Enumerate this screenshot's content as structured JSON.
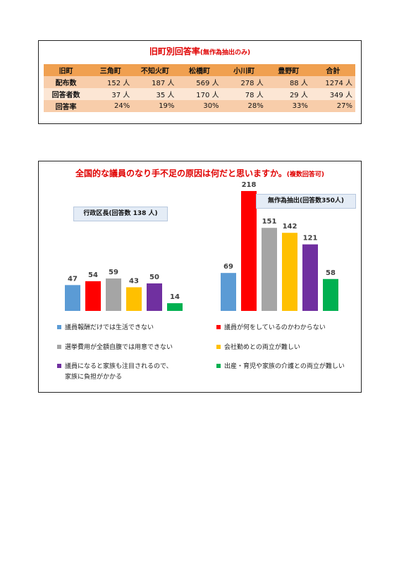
{
  "response_table": {
    "title": "旧町別回答率",
    "subtitle": "(無作為抽出のみ)",
    "headers": [
      "旧町",
      "三角町",
      "不知火町",
      "松橋町",
      "小川町",
      "豊野町",
      "合計"
    ],
    "rows": [
      {
        "label": "配布数",
        "values": [
          "152 人",
          "187 人",
          "569 人",
          "278 人",
          "88 人",
          "1274 人"
        ]
      },
      {
        "label": "回答者数",
        "values": [
          "37 人",
          "35 人",
          "170 人",
          "78 人",
          "29 人",
          "349 人"
        ]
      },
      {
        "label": "回答率",
        "values": [
          "24%",
          "19%",
          "30%",
          "28%",
          "33%",
          "27%"
        ]
      }
    ]
  },
  "chart_panel": {
    "title": "全国的な議員のなり手不足の原因は何だと思いますか。",
    "subtitle": "(複数回答可)"
  },
  "chart_data": [
    {
      "type": "bar",
      "title": "行政区長(回答数 138 人)",
      "categories": [
        "議員報酬だけでは生活できない",
        "議員が何をしているのかわからない",
        "選挙費用が全額自腹では用意できない",
        "会社勤めとの両立が難しい",
        "議員になると家族も注目されるので、家族に負担がかかる",
        "出産・育児や家族の介護との両立が難しい"
      ],
      "values": [
        47,
        54,
        59,
        43,
        50,
        14
      ],
      "colors": [
        "#5b9bd5",
        "#ff0000",
        "#a5a5a5",
        "#ffc000",
        "#7030a0",
        "#00b050"
      ],
      "legend": "bottom"
    },
    {
      "type": "bar",
      "title": "無作為抽出(回答数350人)",
      "categories": [
        "議員報酬だけでは生活できない",
        "議員が何をしているのかわからない",
        "選挙費用が全額自腹では用意できない",
        "会社勤めとの両立が難しい",
        "議員になると家族も注目されるので、家族に負担がかかる",
        "出産・育児や家族の介護との両立が難しい"
      ],
      "values": [
        69,
        218,
        151,
        142,
        121,
        58
      ],
      "colors": [
        "#5b9bd5",
        "#ff0000",
        "#a5a5a5",
        "#ffc000",
        "#7030a0",
        "#00b050"
      ],
      "legend": "bottom"
    }
  ],
  "legend": [
    {
      "label": "議員報酬だけでは生活できない",
      "color": "#5b9bd5"
    },
    {
      "label": "議員が何をしているのかわからない",
      "color": "#ff0000"
    },
    {
      "label": "選挙費用が全額自腹では用意できない",
      "color": "#a5a5a5"
    },
    {
      "label": "会社勤めとの両立が難しい",
      "color": "#ffc000"
    },
    {
      "label": "議員になると家族も注目されるので、",
      "label2": "家族に負担がかかる",
      "color": "#7030a0"
    },
    {
      "label": "出産・育児や家族の介護との両立が難しい",
      "color": "#00b050"
    }
  ]
}
